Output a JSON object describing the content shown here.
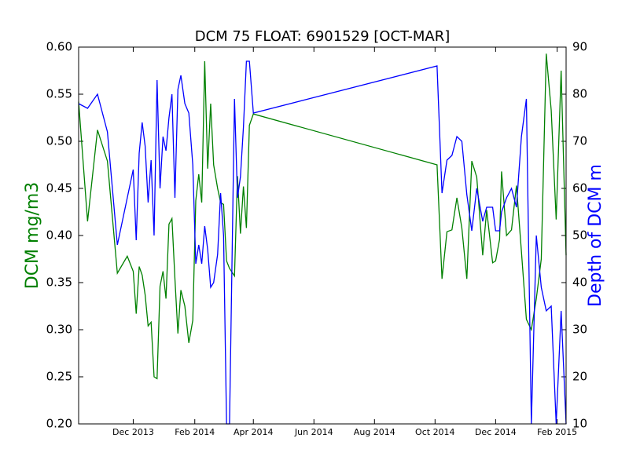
{
  "chart_data": {
    "type": "line",
    "title": "DCM 75 FLOAT: 6901529 [OCT-MAR]",
    "y_label": "DCM mg/m3",
    "y2_label": "Depth of DCM m",
    "x": [
      "2013-10-07",
      "2013-10-16",
      "2013-10-26",
      "2013-11-05",
      "2013-11-15",
      "2013-11-25",
      "2013-12-01",
      "2013-12-04",
      "2013-12-07",
      "2013-12-10",
      "2013-12-13",
      "2013-12-16",
      "2013-12-19",
      "2013-12-22",
      "2013-12-25",
      "2013-12-28",
      "2013-12-31",
      "2014-01-03",
      "2014-01-06",
      "2014-01-09",
      "2014-01-12",
      "2014-01-15",
      "2014-01-18",
      "2014-01-22",
      "2014-01-26",
      "2014-01-30",
      "2014-02-02",
      "2014-02-05",
      "2014-02-08",
      "2014-02-11",
      "2014-02-14",
      "2014-02-17",
      "2014-02-20",
      "2014-02-24",
      "2014-02-27",
      "2014-03-02",
      "2014-03-05",
      "2014-03-08",
      "2014-03-13",
      "2014-03-16",
      "2014-03-19",
      "2014-03-22",
      "2014-03-25",
      "2014-03-28",
      "2014-04-01",
      "2014-10-03",
      "2014-10-08",
      "2014-10-13",
      "2014-10-18",
      "2014-10-23",
      "2014-10-28",
      "2014-11-02",
      "2014-11-07",
      "2014-11-12",
      "2014-11-18",
      "2014-11-22",
      "2014-11-28",
      "2014-12-01",
      "2014-12-05",
      "2014-12-07",
      "2014-12-12",
      "2014-12-17",
      "2014-12-22",
      "2014-12-27",
      "2015-01-01",
      "2015-01-06",
      "2015-01-11",
      "2015-01-16",
      "2015-01-21",
      "2015-01-26",
      "2015-01-31",
      "2015-02-05",
      "2015-02-10"
    ],
    "series": [
      {
        "name": "DCM",
        "color": "#008000",
        "axis": "y",
        "values": [
          0.542,
          0.415,
          0.512,
          0.479,
          0.36,
          0.378,
          0.362,
          0.317,
          0.367,
          0.358,
          0.337,
          0.304,
          0.308,
          0.25,
          0.248,
          0.346,
          0.362,
          0.333,
          0.412,
          0.418,
          0.354,
          0.296,
          0.342,
          0.325,
          0.286,
          0.31,
          0.437,
          0.465,
          0.435,
          0.585,
          0.471,
          0.54,
          0.475,
          0.45,
          0.435,
          0.433,
          0.373,
          0.365,
          0.357,
          0.463,
          0.402,
          0.452,
          0.408,
          0.517,
          0.529,
          0.475,
          0.354,
          0.404,
          0.406,
          0.44,
          0.408,
          0.354,
          0.479,
          0.462,
          0.379,
          0.427,
          0.371,
          0.373,
          0.396,
          0.468,
          0.4,
          0.406,
          0.453,
          0.383,
          0.311,
          0.3,
          0.333,
          0.375,
          0.593,
          0.533,
          0.417,
          0.575,
          0.379
        ]
      },
      {
        "name": "Depth of DCM",
        "color": "#0000ff",
        "axis": "y2",
        "values": [
          78,
          77,
          80,
          72,
          48,
          58,
          64,
          49,
          67.5,
          74,
          69,
          57,
          66,
          50,
          83,
          60,
          71,
          68,
          75,
          80,
          58,
          81,
          84,
          78,
          76,
          65,
          44,
          48,
          44,
          52,
          47,
          39,
          40,
          46,
          59,
          50,
          10,
          10,
          79,
          58,
          62.5,
          73,
          87,
          87,
          76,
          86,
          59,
          66,
          67,
          71,
          70,
          58.7,
          51,
          60,
          53,
          56,
          56,
          51,
          51,
          55,
          58,
          60,
          56,
          71,
          79,
          10,
          50,
          39,
          34,
          35,
          10,
          34,
          10
        ]
      }
    ],
    "xlim": [
      "2013-10-07",
      "2015-02-10"
    ],
    "xticks": [
      {
        "value": "2013-12-01",
        "label": "Dec 2013"
      },
      {
        "value": "2014-02-01",
        "label": "Feb 2014"
      },
      {
        "value": "2014-04-01",
        "label": "Apr 2014"
      },
      {
        "value": "2014-06-01",
        "label": "Jun 2014"
      },
      {
        "value": "2014-08-01",
        "label": "Aug 2014"
      },
      {
        "value": "2014-10-01",
        "label": "Oct 2014"
      },
      {
        "value": "2014-12-01",
        "label": "Dec 2014"
      },
      {
        "value": "2015-02-01",
        "label": "Feb 2015"
      }
    ],
    "ylim": [
      0.2,
      0.6
    ],
    "yticks": [
      {
        "value": 0.2,
        "label": "0.20"
      },
      {
        "value": 0.25,
        "label": "0.25"
      },
      {
        "value": 0.3,
        "label": "0.30"
      },
      {
        "value": 0.35,
        "label": "0.35"
      },
      {
        "value": 0.4,
        "label": "0.40"
      },
      {
        "value": 0.45,
        "label": "0.45"
      },
      {
        "value": 0.5,
        "label": "0.50"
      },
      {
        "value": 0.55,
        "label": "0.55"
      },
      {
        "value": 0.6,
        "label": "0.60"
      }
    ],
    "y2lim": [
      10,
      90
    ],
    "y2ticks": [
      10,
      20,
      30,
      40,
      50,
      60,
      70,
      80,
      90
    ],
    "grid": false
  }
}
